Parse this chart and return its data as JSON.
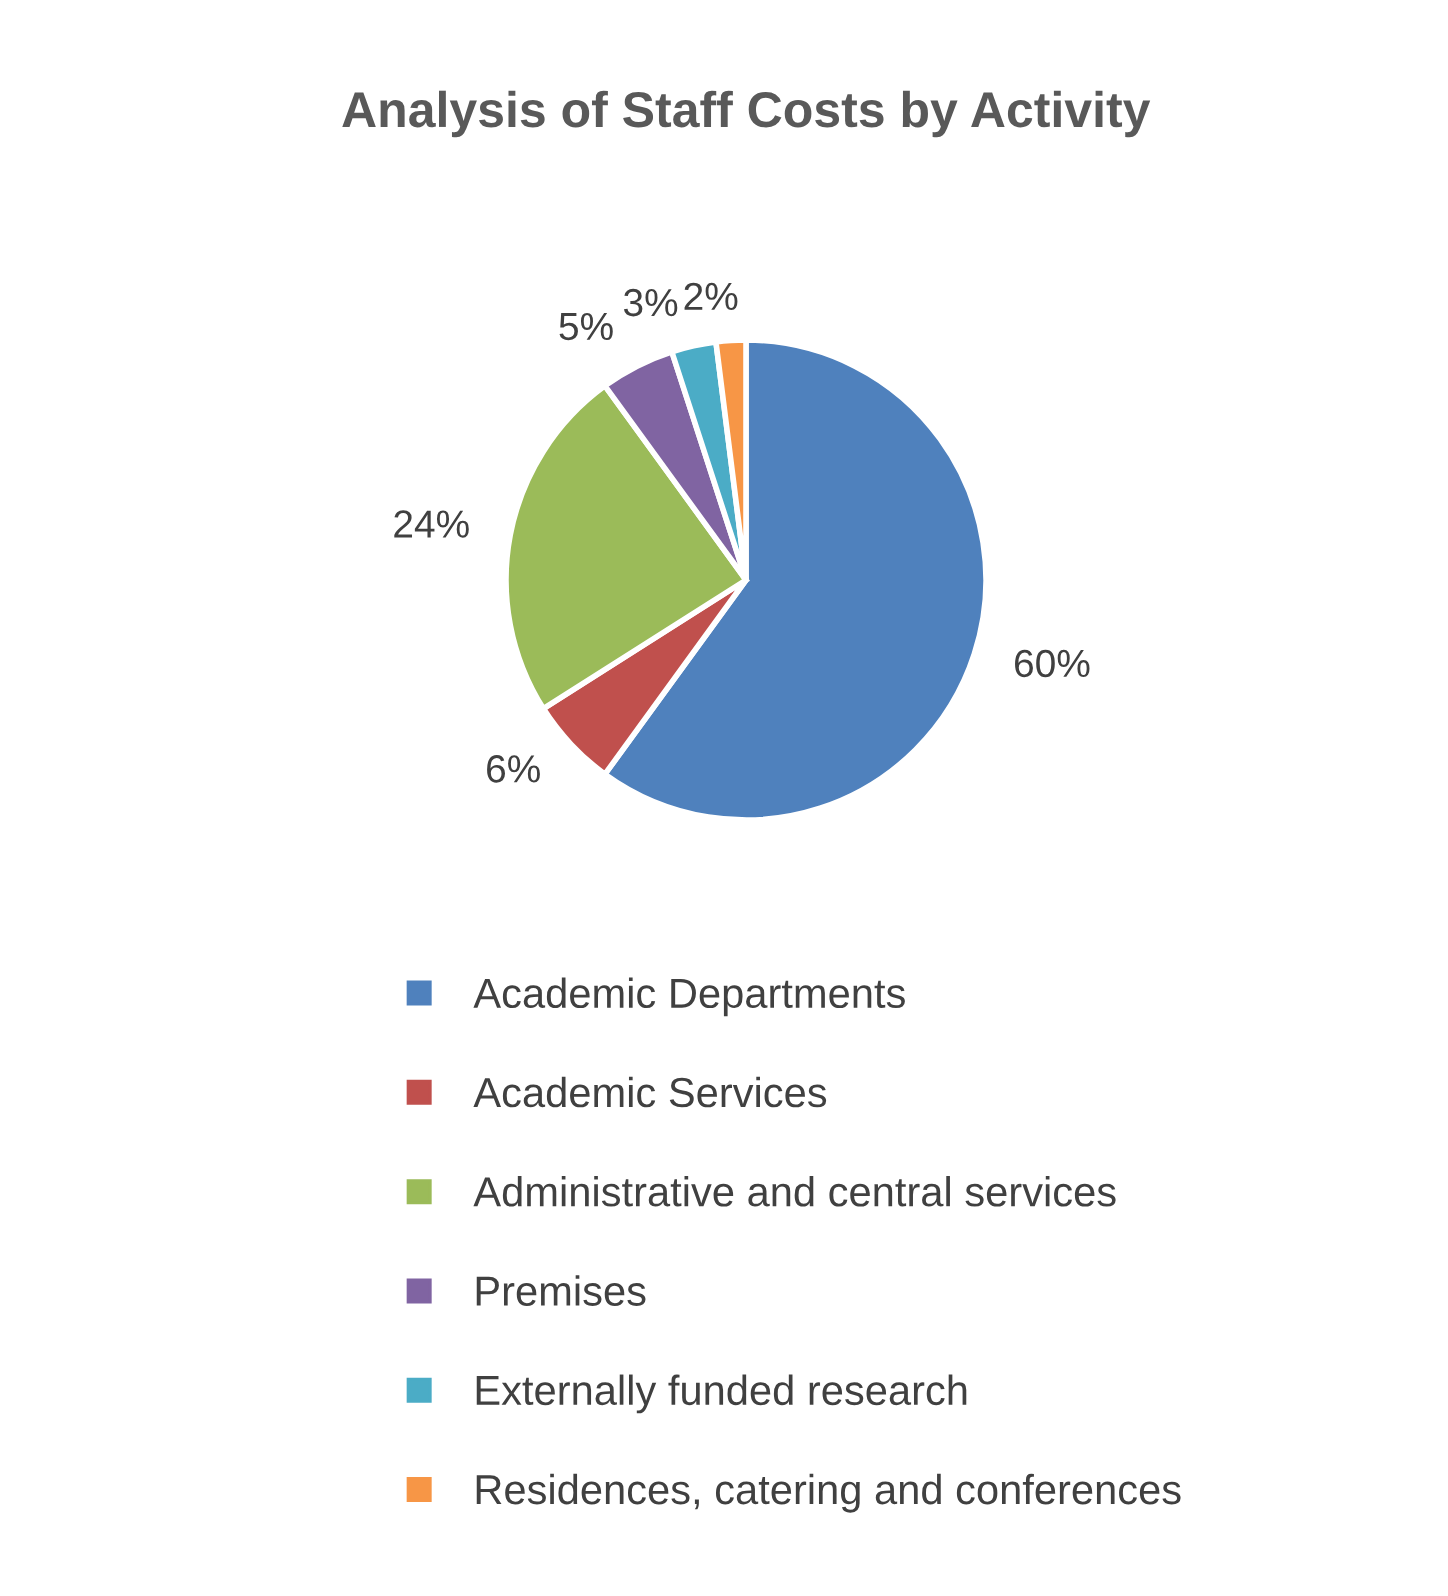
{
  "chart_data": {
    "type": "pie",
    "title": "Analysis of Staff Costs by Activity",
    "categories": [
      "Academic Departments",
      "Academic Services",
      "Administrative and central services",
      "Premises",
      "Externally funded research",
      "Residences, catering and conferences"
    ],
    "values": [
      60,
      6,
      24,
      5,
      3,
      2
    ],
    "value_labels": [
      "60%",
      "6%",
      "24%",
      "5%",
      "3%",
      "2%"
    ],
    "colors": [
      "#4f81bd",
      "#c0504d",
      "#9bbb59",
      "#8064a2",
      "#4bacc6",
      "#f79646"
    ],
    "legend": "bottom"
  }
}
